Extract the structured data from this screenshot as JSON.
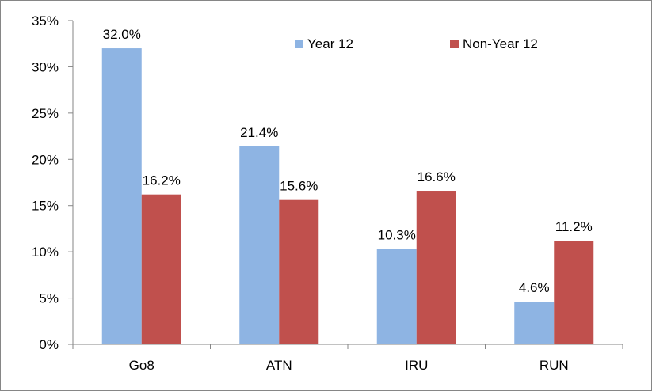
{
  "chart_data": {
    "type": "bar",
    "categories": [
      "Go8",
      "ATN",
      "IRU",
      "RUN"
    ],
    "series": [
      {
        "name": "Year 12",
        "values": [
          32.0,
          21.4,
          10.3,
          4.6
        ],
        "labels": [
          "32.0%",
          "21.4%",
          "10.3%",
          "4.6%"
        ],
        "color": "#8EB4E3"
      },
      {
        "name": "Non-Year 12",
        "values": [
          16.2,
          15.6,
          16.6,
          11.2
        ],
        "labels": [
          "16.2%",
          "15.6%",
          "16.6%",
          "11.2%"
        ],
        "color": "#C0504D"
      }
    ],
    "y_ticks": [
      "0%",
      "5%",
      "10%",
      "15%",
      "20%",
      "25%",
      "30%",
      "35%"
    ],
    "ylim": [
      0,
      35
    ],
    "title": "",
    "xlabel": "",
    "ylabel": "",
    "grid": false,
    "legend_position": "top-right"
  }
}
